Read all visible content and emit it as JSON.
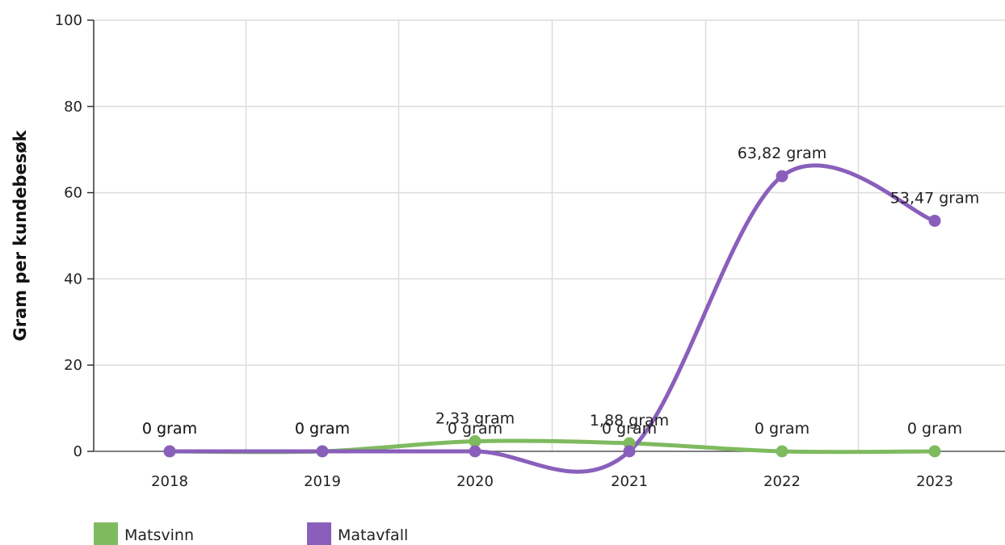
{
  "chart_data": {
    "type": "line",
    "title": "",
    "xlabel": "",
    "ylabel": "Gram per kundebesøk",
    "categories": [
      "2018",
      "2019",
      "2020",
      "2021",
      "2022",
      "2023"
    ],
    "ylim": [
      0,
      100
    ],
    "yticks": [
      0,
      20,
      40,
      60,
      80,
      100
    ],
    "grid": true,
    "smooth": true,
    "legend_position": "bottom-left",
    "series": [
      {
        "name": "Matsvinn",
        "color": "#7fba5f",
        "values": [
          0,
          0,
          2.33,
          1.88,
          0,
          0
        ],
        "labels": [
          "0 gram",
          "0 gram",
          "2,33 gram",
          "1,88 gram",
          "0 gram",
          "0 gram"
        ]
      },
      {
        "name": "Matavfall",
        "color": "#8a5fbb",
        "values": [
          0,
          0,
          0,
          0,
          63.82,
          53.47
        ],
        "labels": [
          "0 gram",
          "0 gram",
          "0 gram",
          "0 gram",
          "63,82 gram",
          "53,47 gram"
        ]
      }
    ]
  }
}
